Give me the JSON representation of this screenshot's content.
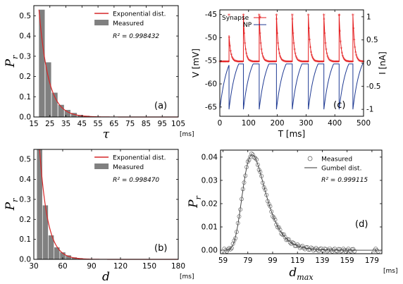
{
  "chart_data": [
    {
      "panel": "(a)",
      "type": "bar",
      "xlabel": "τ",
      "xunit": "[ms]",
      "ylabel": "P",
      "ylabel_sub": "r",
      "xlim": [
        15,
        105
      ],
      "ylim": [
        0,
        0.55
      ],
      "xticks": [
        15,
        25,
        35,
        45,
        55,
        65,
        75,
        85,
        95,
        105
      ],
      "yticks": [
        0.0,
        0.1,
        0.2,
        0.3,
        0.4,
        0.5
      ],
      "bar_width": 3.6,
      "bars": {
        "name": "Measured",
        "color": "#808080",
        "x": [
          20,
          24,
          28,
          32,
          36,
          40,
          44,
          48,
          52
        ],
        "values": [
          0.53,
          0.27,
          0.12,
          0.06,
          0.035,
          0.02,
          0.01,
          0.006,
          0.003
        ]
      },
      "curve": {
        "name": "Exponential dist.",
        "color": "#d62728",
        "x0": 18.2,
        "a": 0.53,
        "k": 0.17
      },
      "annotation": "R² = 0.998432"
    },
    {
      "panel": "(b)",
      "type": "bar",
      "xlabel": "d",
      "xunit": "[ms]",
      "ylabel": "P",
      "ylabel_sub": "r",
      "xlim": [
        30,
        180
      ],
      "ylim": [
        0,
        0.55
      ],
      "xticks": [
        30,
        60,
        90,
        120,
        150,
        180
      ],
      "yticks": [
        0.0,
        0.1,
        0.2,
        0.3,
        0.4,
        0.5
      ],
      "bar_width": 5.5,
      "bars": {
        "name": "Measured",
        "color": "#808080",
        "x": [
          36,
          42,
          48,
          54,
          60,
          66,
          72,
          78
        ],
        "values": [
          0.55,
          0.27,
          0.12,
          0.06,
          0.035,
          0.02,
          0.01,
          0.006
        ]
      },
      "curve": {
        "name": "Exponential dist.",
        "color": "#d62728",
        "x0": 36,
        "a": 0.55,
        "k": 0.12
      },
      "annotation": "R² = 0.998470"
    },
    {
      "panel": "(c)",
      "type": "line",
      "xlabel": "T [ms]",
      "ylabel": "V [mV]",
      "ylabel_right": "I [nA]",
      "xlim": [
        0,
        500
      ],
      "ylim": [
        -67,
        -44
      ],
      "ylim_right": [
        -1.15,
        1.15
      ],
      "xticks": [
        0,
        100,
        200,
        300,
        400,
        500
      ],
      "yticks": [
        -65,
        -60,
        -55,
        -50,
        -45
      ],
      "yticks_right": [
        -1,
        -0.5,
        0,
        0.5,
        1
      ],
      "spike_times": [
        32,
        82,
        137,
        197,
        252,
        308,
        362,
        415,
        463
      ],
      "spike_peak": -45.2,
      "first_peak": -49.5,
      "rest": -55.2,
      "series": [
        {
          "name": "Synapse",
          "color": "#e41a1c",
          "marker": "*"
        },
        {
          "name": "NP",
          "color": "#1f3a93"
        }
      ]
    },
    {
      "panel": "(d)",
      "type": "scatter",
      "xlabel": "d",
      "xlabel_sub": "max",
      "xunit": "[ms]",
      "ylabel": "P",
      "ylabel_sub": "r",
      "xlim": [
        57,
        187
      ],
      "ylim": [
        -0.0015,
        0.043
      ],
      "xticks": [
        59,
        79,
        99,
        119,
        139,
        159,
        179
      ],
      "yticks": [
        0.0,
        0.01,
        0.02,
        0.03,
        0.04
      ],
      "series": [
        {
          "name": "Measured",
          "marker": "o",
          "color": "#555555"
        },
        {
          "name": "Gumbel dist.",
          "color": "#333333"
        }
      ],
      "gumbel": {
        "mu": 82.5,
        "beta": 9.0,
        "peak": 0.041
      },
      "annotation": "R² = 0.999115"
    }
  ]
}
